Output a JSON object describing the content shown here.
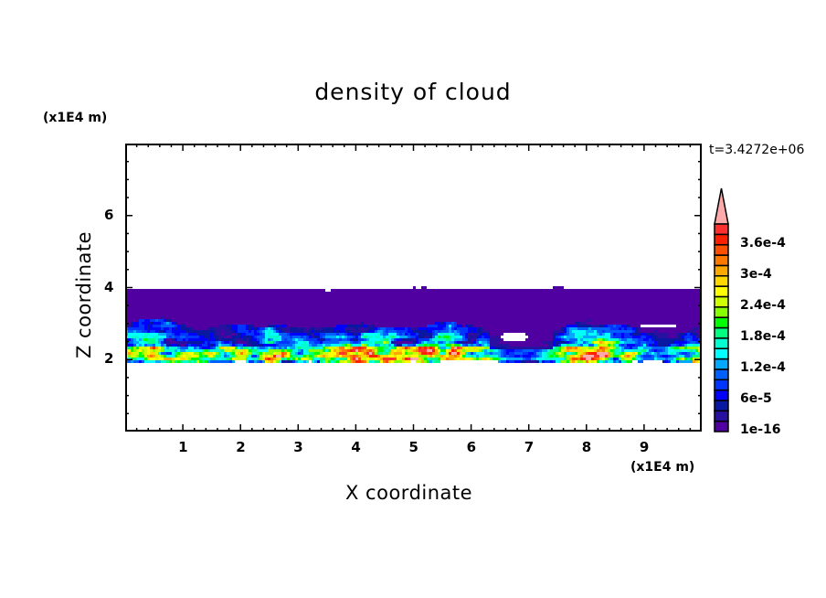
{
  "chart_data": {
    "type": "heatmap",
    "subtype": "filled-contour",
    "title": "density of cloud",
    "xlabel": "X coordinate",
    "ylabel": "Z coordinate",
    "x_unit": "(x1E4 m)",
    "y_unit": "(x1E4 m)",
    "xlim": [
      0,
      10
    ],
    "ylim": [
      0,
      8
    ],
    "x_ticks": [
      "1",
      "2",
      "3",
      "4",
      "5",
      "6",
      "7",
      "8",
      "9"
    ],
    "x_tick_values": [
      1,
      2,
      3,
      4,
      5,
      6,
      7,
      8,
      9
    ],
    "y_ticks": [
      "2",
      "4",
      "6"
    ],
    "y_tick_values": [
      2,
      4,
      6
    ],
    "x_minor_step": 0.2,
    "y_minor_step": 0.5,
    "grid": false,
    "time_label": "t=3.4272e+06",
    "colorbar": {
      "position": "right",
      "extend": "max",
      "level_min": 1e-16,
      "level_step": 2e-05,
      "level_max": 0.0004,
      "labels": [
        "1e-16",
        "6e-5",
        "1.2e-4",
        "1.8e-4",
        "2.4e-4",
        "3e-4",
        "3.6e-4"
      ],
      "label_values": [
        0,
        6e-05,
        0.00012,
        0.00018,
        0.00024,
        0.0003,
        0.00036
      ],
      "colors": [
        "#5000a0",
        "#2810a0",
        "#0818a0",
        "#0000ff",
        "#0034ff",
        "#0060ff",
        "#00a8ff",
        "#00ffff",
        "#00ffd0",
        "#00ff80",
        "#00ff00",
        "#88ff00",
        "#d0ff00",
        "#ffff00",
        "#ffd800",
        "#ffa800",
        "#ff7800",
        "#ff5000",
        "#ff2000",
        "#ff3030"
      ],
      "extend_color": "#ffaaaa"
    },
    "field_description": {
      "cloud_layer_z": [
        1.9,
        4.1
      ],
      "active_region_z": [
        1.9,
        3.4
      ]
    }
  }
}
